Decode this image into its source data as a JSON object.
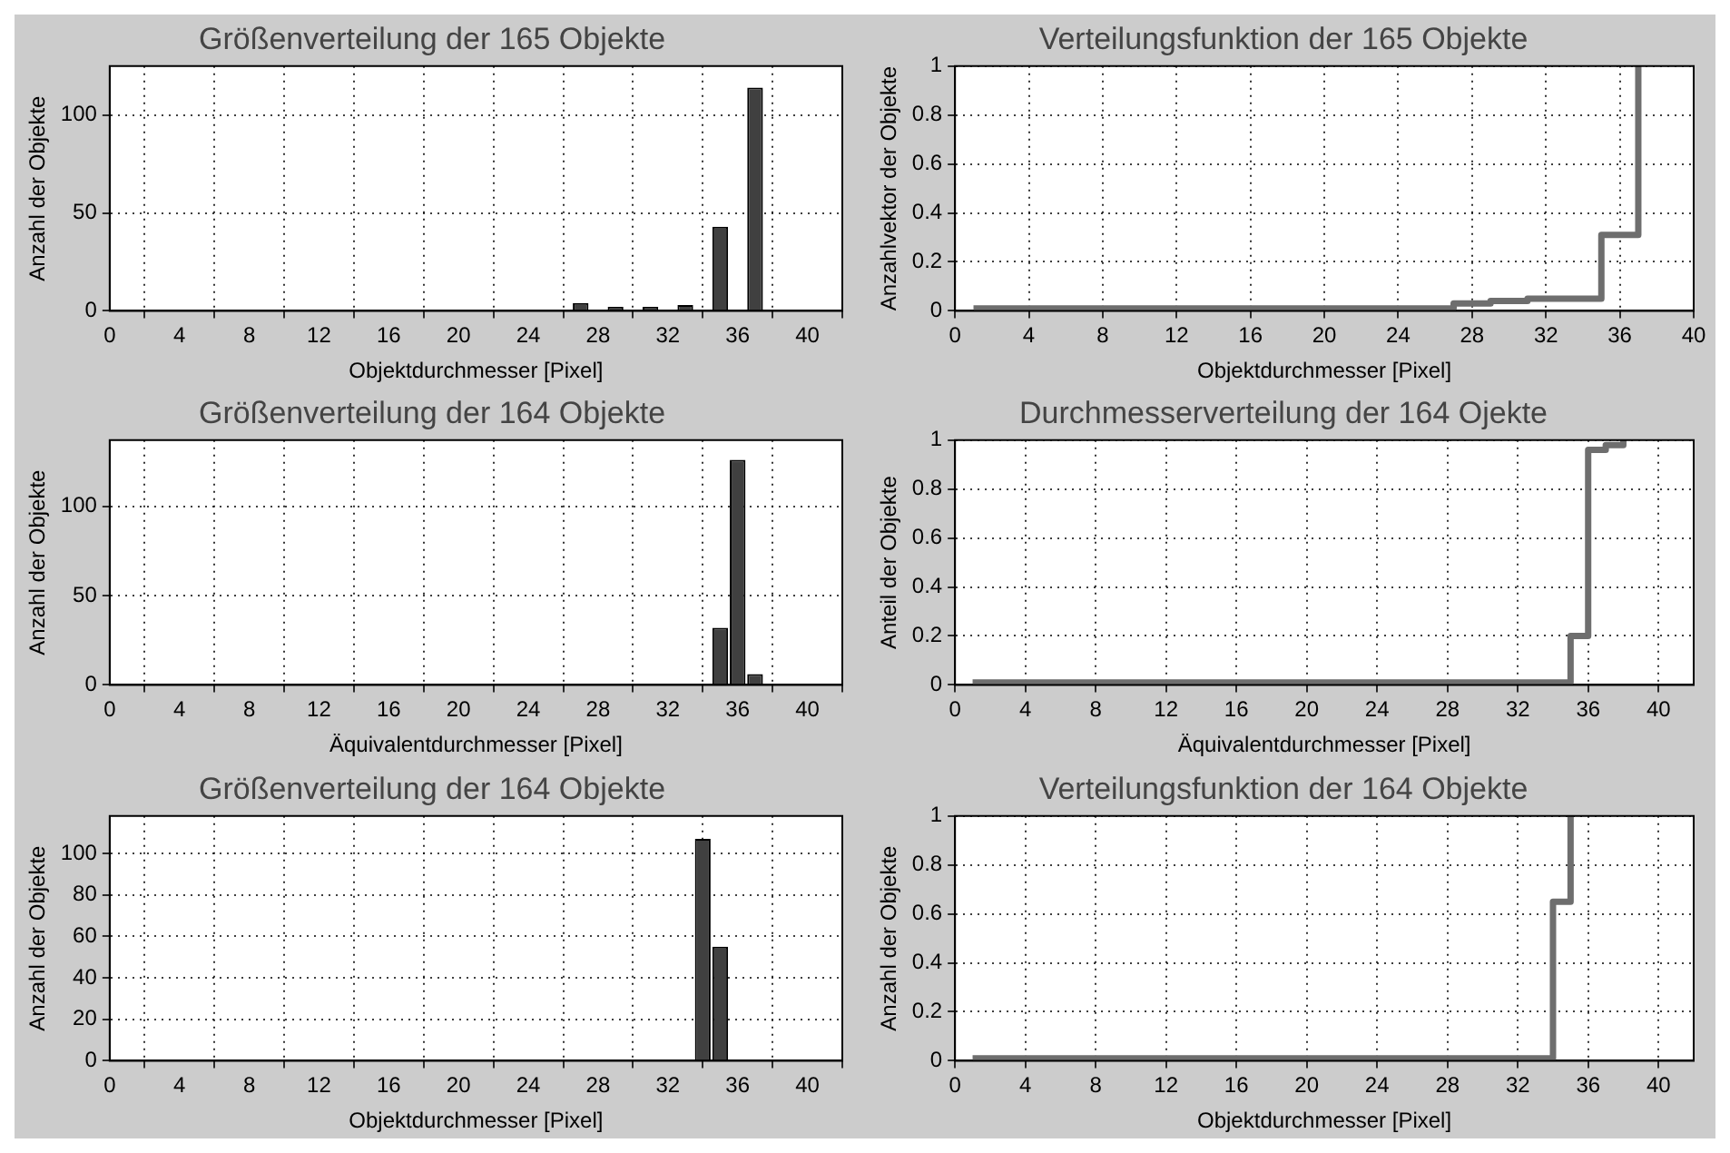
{
  "chart_data": [
    {
      "type": "bar",
      "title": "Größenverteilung der 165 Objekte",
      "xlabel": "Objektdurchmesser [Pixel]",
      "ylabel": "Anzahl der Objekte",
      "x": [
        27,
        29,
        31,
        33,
        35,
        37
      ],
      "values": [
        4,
        2,
        2,
        3,
        43,
        114
      ],
      "color": "#404040",
      "xlim": [
        0,
        42
      ],
      "xticks": [
        0,
        4,
        8,
        12,
        16,
        20,
        24,
        28,
        32,
        36,
        40
      ],
      "ylim": [
        0,
        125
      ],
      "yticks": [
        0,
        50,
        100
      ],
      "grid": true
    },
    {
      "type": "step",
      "title": "Verteilungsfunktion der 165 Objekte",
      "xlabel": "Objektdurchmesser [Pixel]",
      "ylabel": "Anzahlvektor der Objekte",
      "x": [
        1,
        27,
        29,
        31,
        33,
        35,
        37
      ],
      "values": [
        0.01,
        0.03,
        0.04,
        0.05,
        0.05,
        0.31,
        1
      ],
      "color": "#6e6e6e",
      "xlim": [
        0,
        40
      ],
      "xticks": [
        0,
        4,
        8,
        12,
        16,
        20,
        24,
        28,
        32,
        36,
        40
      ],
      "ylim": [
        0,
        1
      ],
      "yticks": [
        0,
        0.2,
        0.4,
        0.6,
        0.8,
        1
      ],
      "grid": true
    },
    {
      "type": "bar",
      "title": "Größenverteilung der 164 Objekte",
      "xlabel": "Äquivalentdurchmesser [Pixel]",
      "ylabel": "Anzahl der Objekte",
      "x": [
        35,
        36,
        37
      ],
      "values": [
        32,
        126,
        6
      ],
      "color": "#404040",
      "xlim": [
        0,
        42
      ],
      "xticks": [
        0,
        4,
        8,
        12,
        16,
        20,
        24,
        28,
        32,
        36,
        40
      ],
      "ylim": [
        0,
        137
      ],
      "yticks": [
        0,
        50,
        100
      ],
      "grid": true
    },
    {
      "type": "step",
      "title": "Durchmesserverteilung der 164 Ojekte",
      "xlabel": "Äquivalentdurchmesser [Pixel]",
      "ylabel": "Anteil der Objekte",
      "x": [
        1,
        35,
        36,
        37,
        38
      ],
      "values": [
        0.01,
        0.2,
        0.96,
        0.98,
        1
      ],
      "color": "#6e6e6e",
      "xlim": [
        0,
        42
      ],
      "xticks": [
        0,
        4,
        8,
        12,
        16,
        20,
        24,
        28,
        32,
        36,
        40
      ],
      "ylim": [
        0,
        1
      ],
      "yticks": [
        0,
        0.2,
        0.4,
        0.6,
        0.8,
        1
      ],
      "grid": true
    },
    {
      "type": "bar",
      "title": "Größenverteilung der 164 Objekte",
      "xlabel": "Objektdurchmesser [Pixel]",
      "ylabel": "Anzahl der Objekte",
      "x": [
        34,
        35
      ],
      "values": [
        107,
        55
      ],
      "color": "#404040",
      "xlim": [
        0,
        42
      ],
      "xticks": [
        0,
        4,
        8,
        12,
        16,
        20,
        24,
        28,
        32,
        36,
        40
      ],
      "ylim": [
        0,
        118
      ],
      "yticks": [
        0,
        20,
        40,
        60,
        80,
        100
      ],
      "grid": true
    },
    {
      "type": "step",
      "title": "Verteilungsfunktion der 164 Objekte",
      "xlabel": "Objektdurchmesser [Pixel]",
      "ylabel": "Anzahl der Objekte",
      "x": [
        1,
        34,
        35
      ],
      "values": [
        0.01,
        0.65,
        1
      ],
      "color": "#6e6e6e",
      "xlim": [
        0,
        42
      ],
      "xticks": [
        0,
        4,
        8,
        12,
        16,
        20,
        24,
        28,
        32,
        36,
        40
      ],
      "ylim": [
        0,
        1
      ],
      "yticks": [
        0,
        0.2,
        0.4,
        0.6,
        0.8,
        1
      ],
      "grid": true
    }
  ]
}
